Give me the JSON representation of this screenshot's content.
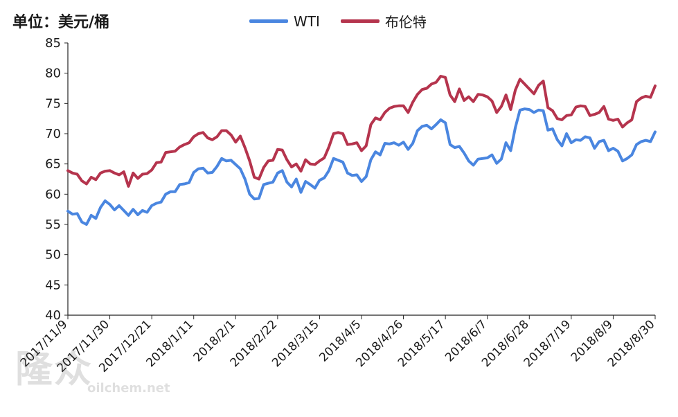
{
  "chart_data": {
    "type": "line",
    "unit_label": "单位：美元/桶",
    "ylim": [
      40,
      85
    ],
    "yticks": [
      40,
      45,
      50,
      55,
      60,
      65,
      70,
      75,
      80,
      85
    ],
    "xticks": [
      "2017/11/9",
      "2017/11/30",
      "2017/12/21",
      "2018/1/11",
      "2018/2/1",
      "2018/2/22",
      "2018/3/15",
      "2018/4/5",
      "2018/4/26",
      "2018/5/17",
      "2018/6/7",
      "2018/6/28",
      "2018/7/19",
      "2018/8/9",
      "2018/8/30"
    ],
    "legend_position": "top",
    "series": [
      {
        "name": "WTI",
        "color": "#4a86e0",
        "values": [
          57.2,
          56.7,
          56.8,
          55.4,
          55.0,
          56.5,
          56.0,
          57.8,
          58.9,
          58.3,
          57.4,
          58.1,
          57.3,
          56.5,
          57.5,
          56.6,
          57.3,
          57.0,
          58.1,
          58.5,
          58.7,
          60.0,
          60.4,
          60.4,
          61.6,
          61.7,
          61.9,
          63.6,
          64.2,
          64.3,
          63.5,
          63.6,
          64.6,
          65.9,
          65.5,
          65.6,
          64.9,
          64.2,
          62.5,
          60.0,
          59.2,
          59.3,
          61.6,
          61.8,
          62.0,
          63.5,
          63.9,
          62.0,
          61.2,
          62.5,
          60.3,
          62.1,
          61.6,
          61.0,
          62.3,
          62.7,
          63.9,
          65.9,
          65.6,
          65.3,
          63.5,
          63.1,
          63.2,
          62.1,
          62.9,
          65.7,
          67.0,
          66.5,
          68.4,
          68.3,
          68.5,
          68.1,
          68.6,
          67.4,
          68.4,
          70.5,
          71.2,
          71.4,
          70.8,
          71.5,
          72.3,
          71.8,
          68.2,
          67.7,
          67.9,
          66.8,
          65.5,
          64.8,
          65.8,
          65.9,
          66.0,
          66.5,
          65.1,
          65.8,
          68.5,
          67.2,
          71.0,
          73.9,
          74.1,
          74.0,
          73.5,
          73.9,
          73.8,
          70.6,
          70.8,
          69.0,
          68.0,
          70.0,
          68.5,
          69.0,
          68.9,
          69.5,
          69.3,
          67.6,
          68.7,
          68.9,
          67.2,
          67.6,
          67.1,
          65.5,
          65.9,
          66.5,
          68.2,
          68.7,
          68.9,
          68.7,
          70.3
        ],
        "labels": []
      },
      {
        "name": "布伦特",
        "color": "#b5344d",
        "values": [
          63.9,
          63.5,
          63.3,
          62.2,
          61.7,
          62.8,
          62.4,
          63.5,
          63.8,
          63.9,
          63.5,
          63.2,
          63.7,
          61.3,
          63.5,
          62.6,
          63.3,
          63.4,
          64.0,
          65.2,
          65.3,
          66.9,
          67.0,
          67.1,
          67.8,
          68.2,
          68.5,
          69.5,
          70.0,
          70.2,
          69.3,
          69.0,
          69.5,
          70.5,
          70.5,
          69.8,
          68.6,
          69.6,
          67.7,
          65.5,
          62.8,
          62.5,
          64.4,
          65.5,
          65.6,
          67.4,
          67.3,
          65.7,
          64.5,
          65.0,
          63.8,
          65.7,
          65.0,
          64.9,
          65.5,
          66.0,
          67.8,
          70.0,
          70.2,
          70.0,
          68.2,
          68.3,
          68.5,
          67.2,
          68.0,
          71.5,
          72.6,
          72.3,
          73.5,
          74.2,
          74.5,
          74.6,
          74.6,
          73.5,
          75.2,
          76.5,
          77.3,
          77.5,
          78.2,
          78.5,
          79.5,
          79.3,
          76.4,
          75.3,
          77.4,
          75.5,
          76.1,
          75.3,
          76.5,
          76.4,
          76.1,
          75.4,
          73.5,
          74.5,
          76.4,
          74.0,
          77.2,
          79.0,
          78.2,
          77.4,
          76.6,
          78.0,
          78.7,
          74.3,
          73.8,
          72.5,
          72.3,
          73.0,
          73.1,
          74.4,
          74.6,
          74.5,
          73.0,
          73.2,
          73.5,
          74.5,
          72.4,
          72.2,
          72.4,
          71.1,
          71.8,
          72.3,
          75.3,
          75.9,
          76.2,
          76.0,
          77.9
        ],
        "labels": []
      }
    ]
  },
  "watermark": {
    "main": "隆众",
    "sub": "oilchem.net"
  }
}
